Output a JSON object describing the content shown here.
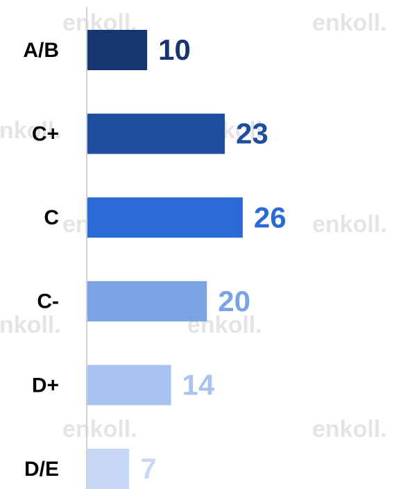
{
  "chart_data": {
    "type": "barh",
    "watermark": "enkoll.",
    "categories": [
      "A/B",
      "C+",
      "C",
      "C-",
      "D+",
      "D/E"
    ],
    "values": [
      10,
      23,
      26,
      20,
      14,
      7
    ],
    "colors": [
      "#17366f",
      "#1f4e9f",
      "#2a6ad6",
      "#7ba3e4",
      "#a8c3ef",
      "#c6d8f4"
    ],
    "xlim": [
      0,
      54
    ]
  }
}
